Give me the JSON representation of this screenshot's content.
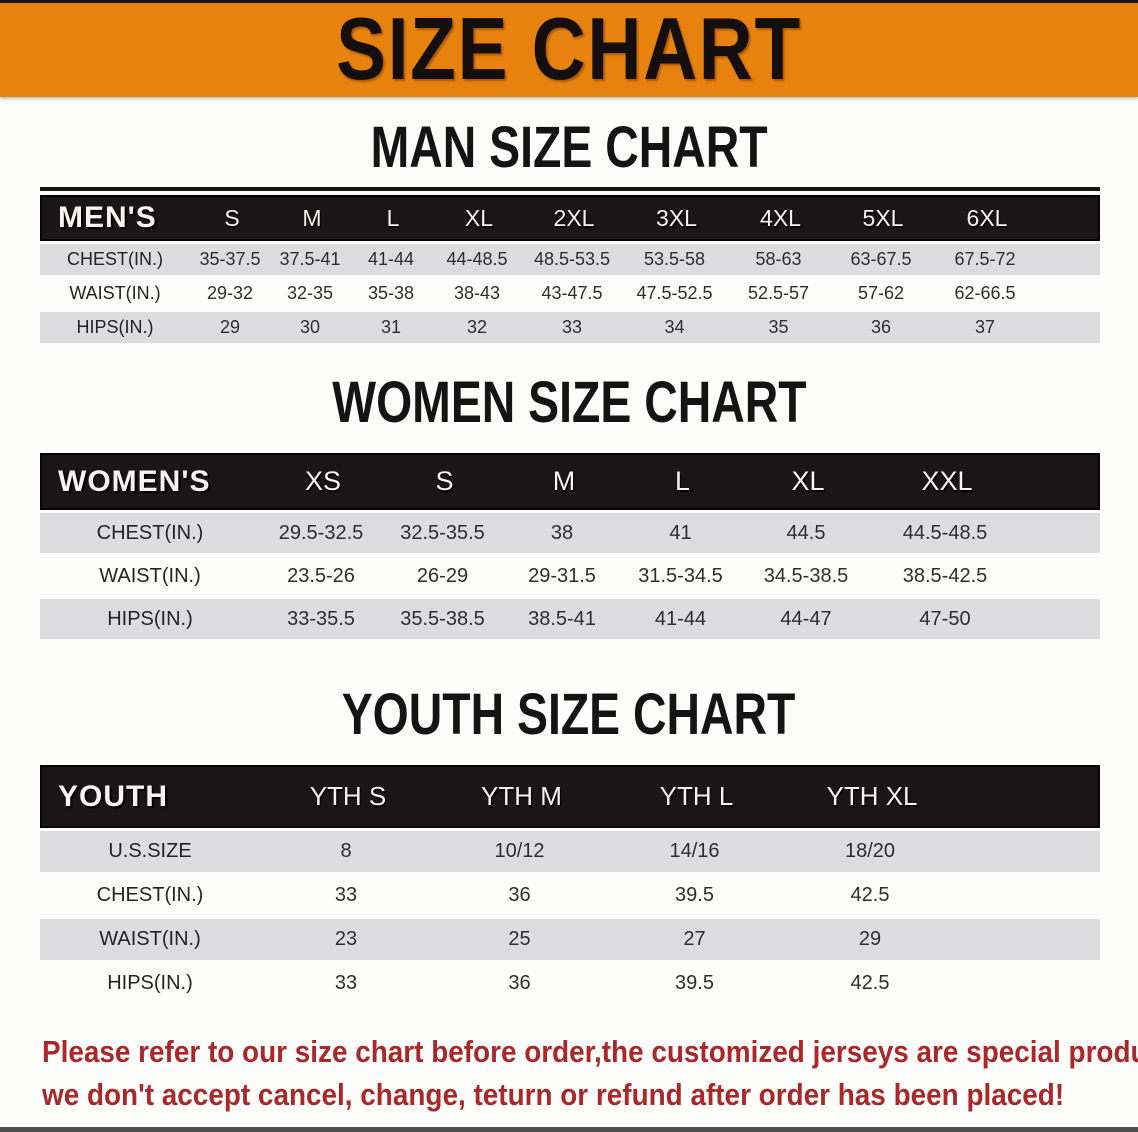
{
  "banner": {
    "title": "SIZE CHART"
  },
  "colors": {
    "banner_orange": "#E8820E",
    "band_black": "#1A1517",
    "row_gray": "#DDDCDE",
    "footer_red": "#A9292B"
  },
  "sections": [
    {
      "heading": "MAN SIZE CHART",
      "table": {
        "header_label": "MEN'S",
        "columns": [
          "S",
          "M",
          "L",
          "XL",
          "2XL",
          "3XL",
          "4XL",
          "5XL",
          "6XL"
        ],
        "rows": [
          {
            "label": "CHEST(IN.)",
            "values": [
              "35-37.5",
              "37.5-41",
              "41-44",
              "44-48.5",
              "48.5-53.5",
              "53.5-58",
              "58-63",
              "63-67.5",
              "67.5-72"
            ]
          },
          {
            "label": "WAIST(IN.)",
            "values": [
              "29-32",
              "32-35",
              "35-38",
              "38-43",
              "43-47.5",
              "47.5-52.5",
              "52.5-57",
              "57-62",
              "62-66.5"
            ]
          },
          {
            "label": "HIPS(IN.)",
            "values": [
              "29",
              "30",
              "31",
              "32",
              "33",
              "34",
              "35",
              "36",
              "37"
            ]
          }
        ]
      }
    },
    {
      "heading": "WOMEN SIZE CHART",
      "table": {
        "header_label": "WOMEN'S",
        "columns": [
          "XS",
          "S",
          "M",
          "L",
          "XL",
          "XXL"
        ],
        "rows": [
          {
            "label": "CHEST(IN.)",
            "values": [
              "29.5-32.5",
              "32.5-35.5",
              "38",
              "41",
              "44.5",
              "44.5-48.5"
            ]
          },
          {
            "label": "WAIST(IN.)",
            "values": [
              "23.5-26",
              "26-29",
              "29-31.5",
              "31.5-34.5",
              "34.5-38.5",
              "38.5-42.5"
            ]
          },
          {
            "label": "HIPS(IN.)",
            "values": [
              "33-35.5",
              "35.5-38.5",
              "38.5-41",
              "41-44",
              "44-47",
              "47-50"
            ]
          }
        ]
      }
    },
    {
      "heading": "YOUTH SIZE CHART",
      "table": {
        "header_label": "YOUTH",
        "columns": [
          "YTH S",
          "YTH M",
          "YTH L",
          "YTH XL"
        ],
        "rows": [
          {
            "label": "U.S.SIZE",
            "values": [
              "8",
              "10/12",
              "14/16",
              "18/20"
            ]
          },
          {
            "label": "CHEST(IN.)",
            "values": [
              "33",
              "36",
              "39.5",
              "42.5"
            ]
          },
          {
            "label": "WAIST(IN.)",
            "values": [
              "23",
              "25",
              "27",
              "29"
            ]
          },
          {
            "label": "HIPS(IN.)",
            "values": [
              "33",
              "36",
              "39.5",
              "42.5"
            ]
          }
        ]
      }
    }
  ],
  "footer": {
    "line1": "Please refer to our size chart before order,the customized jerseys are special products,",
    "line2": "we don't accept cancel, change, teturn or refund after order has been placed!"
  }
}
